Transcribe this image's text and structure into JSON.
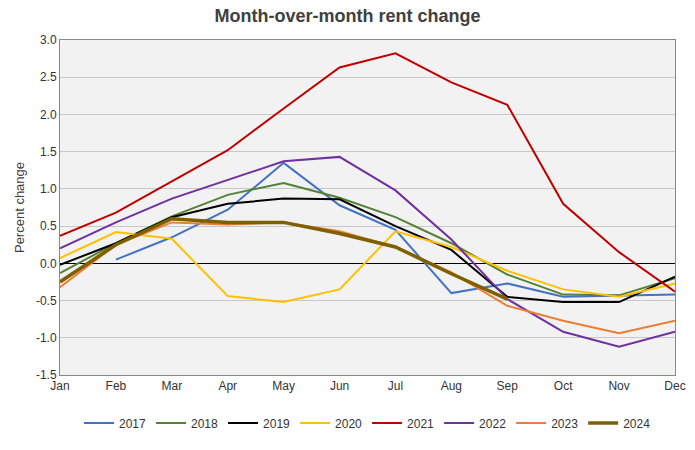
{
  "chart_data": {
    "type": "line",
    "title": "Month-over-month rent change",
    "y_label": "Percent change",
    "categories": [
      "Jan",
      "Feb",
      "Mar",
      "Apr",
      "May",
      "Jun",
      "Jul",
      "Aug",
      "Sep",
      "Oct",
      "Nov",
      "Dec"
    ],
    "series": [
      {
        "name": "2017",
        "color": "#4472c4",
        "values": [
          null,
          0.05,
          0.35,
          0.72,
          1.35,
          0.78,
          0.45,
          -0.4,
          -0.27,
          -0.45,
          -0.43,
          -0.42
        ]
      },
      {
        "name": "2018",
        "color": "#548235",
        "values": [
          -0.13,
          0.27,
          0.63,
          0.92,
          1.08,
          0.88,
          0.62,
          0.27,
          -0.15,
          -0.42,
          -0.43,
          -0.2
        ]
      },
      {
        "name": "2019",
        "color": "#000000",
        "values": [
          -0.02,
          0.27,
          0.62,
          0.8,
          0.87,
          0.86,
          0.5,
          0.18,
          -0.45,
          -0.52,
          -0.52,
          -0.18
        ]
      },
      {
        "name": "2020",
        "color": "#ffc000",
        "values": [
          0.07,
          0.42,
          0.33,
          -0.44,
          -0.52,
          -0.35,
          0.43,
          0.22,
          -0.1,
          -0.35,
          -0.45,
          -0.27
        ]
      },
      {
        "name": "2021",
        "color": "#c00000",
        "values": [
          0.37,
          0.68,
          1.1,
          1.52,
          2.08,
          2.63,
          2.82,
          2.43,
          2.13,
          0.8,
          0.15,
          -0.38
        ]
      },
      {
        "name": "2022",
        "color": "#7030a0",
        "values": [
          0.2,
          0.55,
          0.87,
          1.12,
          1.37,
          1.43,
          0.98,
          0.32,
          -0.48,
          -0.92,
          -1.12,
          -0.92
        ]
      },
      {
        "name": "2023",
        "color": "#ed7d31",
        "values": [
          -0.32,
          0.25,
          0.55,
          0.52,
          0.55,
          0.43,
          0.22,
          -0.12,
          -0.57,
          -0.77,
          -0.94,
          -0.77
        ]
      },
      {
        "name": "2024",
        "color": "#7f6000",
        "values": [
          -0.25,
          0.25,
          0.6,
          0.55,
          0.55,
          0.4,
          0.22,
          -0.14,
          -0.48,
          null,
          null,
          null
        ]
      }
    ],
    "ylim": [
      -1.5,
      3.0
    ],
    "yticks": [
      -1.5,
      {
        "value": -1.0,
        "label": "-1.0"
      },
      -0.5,
      {
        "value": 0.0,
        "label": "0.0"
      },
      0.5,
      {
        "value": 1.0,
        "label": "1.0"
      },
      1.5,
      {
        "value": 2.0,
        "label": "2.0"
      },
      2.5,
      {
        "value": 3.0,
        "label": "3.0"
      }
    ],
    "grid": true,
    "legend": "bottom"
  }
}
